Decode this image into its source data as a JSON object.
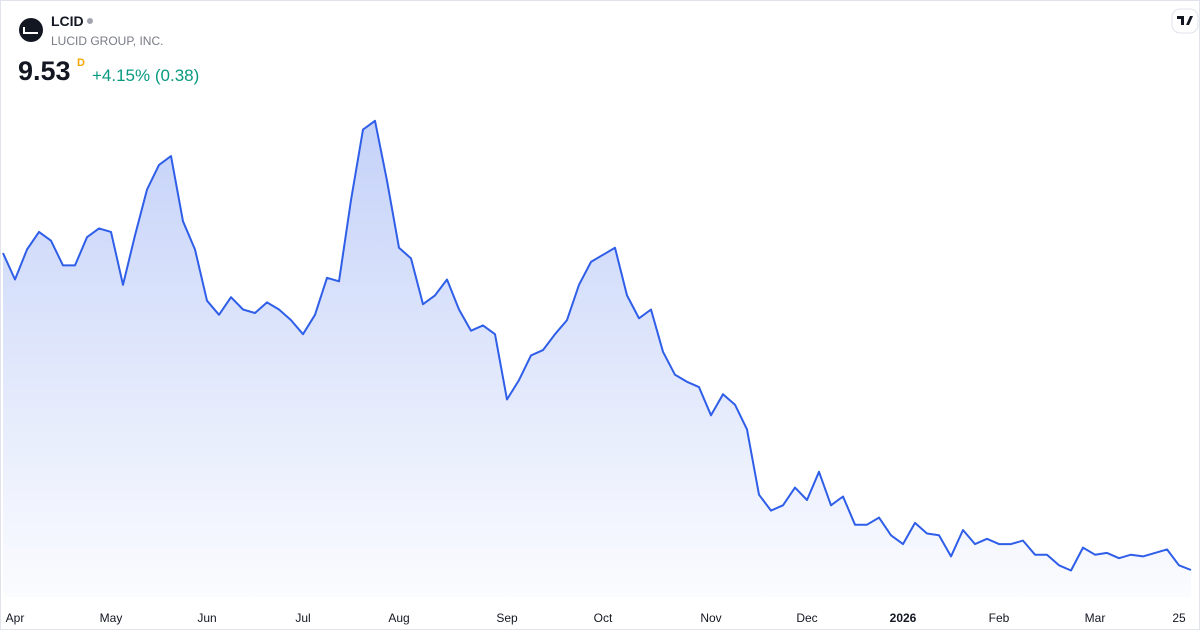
{
  "chart_data": {
    "type": "area",
    "symbol": "LCID",
    "company": "LUCID GROUP, INC.",
    "price": "9.53",
    "interval": "D",
    "change": "+4.15% (0.38)",
    "color": "#2f5ee8",
    "x": [
      0,
      1,
      2,
      3,
      4,
      5,
      6,
      7,
      8,
      9,
      10,
      11,
      12,
      13,
      14,
      15,
      16,
      17,
      18,
      19,
      20,
      21,
      22,
      23,
      24,
      25,
      26,
      27,
      28,
      29,
      30,
      31,
      32,
      33,
      34,
      35,
      36,
      37,
      38,
      39,
      40,
      41,
      42,
      43,
      44,
      45,
      46,
      47,
      48,
      49,
      50,
      51,
      52,
      53,
      54,
      55,
      56,
      57,
      58,
      59,
      60,
      61,
      62,
      63,
      64,
      65,
      66,
      67,
      68,
      69,
      70,
      71,
      72,
      73,
      74,
      75,
      76,
      77,
      78,
      79,
      80,
      81,
      82,
      83,
      84,
      85,
      86,
      87,
      88,
      89,
      90,
      91,
      92,
      93,
      94,
      95,
      96,
      97,
      98,
      99
    ],
    "values": [
      27.5,
      26.0,
      27.7,
      28.7,
      28.2,
      26.8,
      26.8,
      28.4,
      28.9,
      28.7,
      25.7,
      28.5,
      31.1,
      32.5,
      33.0,
      29.3,
      27.7,
      24.8,
      24.0,
      25.0,
      24.3,
      24.1,
      24.7,
      24.3,
      23.7,
      22.9,
      24.0,
      26.1,
      25.9,
      30.5,
      34.5,
      35.0,
      31.6,
      27.8,
      27.2,
      24.6,
      25.1,
      26.0,
      24.3,
      23.1,
      23.4,
      22.9,
      19.2,
      20.3,
      21.7,
      22.0,
      22.9,
      23.7,
      25.7,
      27.0,
      27.4,
      27.8,
      25.1,
      23.8,
      24.3,
      21.9,
      20.6,
      20.2,
      19.9,
      18.3,
      19.5,
      18.9,
      17.5,
      13.8,
      12.9,
      13.2,
      14.2,
      13.5,
      15.1,
      13.2,
      13.7,
      12.1,
      12.1,
      12.5,
      11.5,
      11.0,
      12.2,
      11.6,
      11.5,
      10.3,
      11.8,
      11.0,
      11.3,
      11.0,
      11.0,
      11.2,
      10.4,
      10.4,
      9.8,
      9.5,
      10.8,
      10.4,
      10.5,
      10.2,
      10.4,
      10.3,
      10.5,
      10.7,
      9.8,
      9.53
    ],
    "xlim": [
      0,
      99
    ],
    "ylim": [
      8,
      37
    ],
    "xticks": [
      {
        "value": 1,
        "label": "Apr"
      },
      {
        "value": 9,
        "label": "May"
      },
      {
        "value": 17,
        "label": "Jun"
      },
      {
        "value": 25,
        "label": "Jul"
      },
      {
        "value": 33,
        "label": "Aug"
      },
      {
        "value": 42,
        "label": "Sep"
      },
      {
        "value": 50,
        "label": "Oct"
      },
      {
        "value": 59,
        "label": "Nov"
      },
      {
        "value": 67,
        "label": "Dec"
      },
      {
        "value": 75,
        "label": "2026",
        "bold": true
      },
      {
        "value": 83,
        "label": "Feb"
      },
      {
        "value": 91,
        "label": "Mar"
      },
      {
        "value": 98,
        "label": "25"
      }
    ]
  }
}
